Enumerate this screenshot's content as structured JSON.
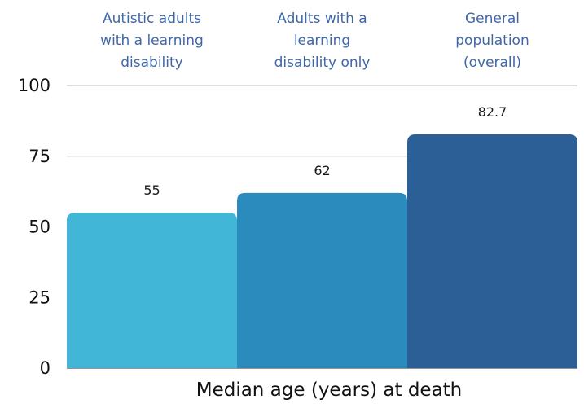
{
  "chart_data": {
    "type": "bar",
    "categories": [
      [
        "Autistic adults",
        "with a learning",
        "disability"
      ],
      [
        "Adults with a",
        "learning",
        "disability only"
      ],
      [
        "General",
        "population",
        "(overall)"
      ]
    ],
    "values": [
      55,
      62,
      82.7
    ],
    "value_labels": [
      "55",
      "62",
      "82.7"
    ],
    "xlabel": "Median age (years) at death",
    "ylabel": "",
    "ylim": [
      0,
      100
    ],
    "yticks": [
      0,
      25,
      50,
      75,
      100
    ],
    "grid": true,
    "bar_colors": [
      "#41b6d6",
      "#2b8bbc",
      "#2d5f97"
    ],
    "category_label_color": "#3f67a8"
  }
}
